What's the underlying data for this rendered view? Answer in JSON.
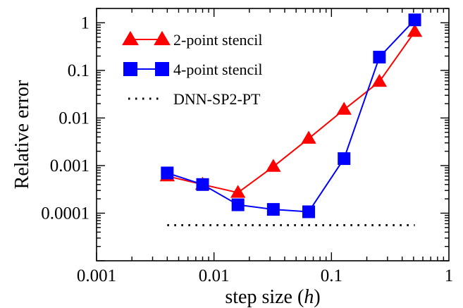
{
  "chart_data": {
    "type": "line",
    "xscale": "log",
    "yscale": "log",
    "xlim": [
      0.001,
      1
    ],
    "ylim": [
      1e-05,
      2
    ],
    "xticks": [
      {
        "value": 0.001,
        "label": "0.001"
      },
      {
        "value": 0.01,
        "label": "0.01"
      },
      {
        "value": 0.1,
        "label": "0.1"
      },
      {
        "value": 1,
        "label": "1"
      }
    ],
    "yticks": [
      {
        "value": 0.0001,
        "label": "0.0001"
      },
      {
        "value": 0.001,
        "label": "0.001"
      },
      {
        "value": 0.01,
        "label": "0.01"
      },
      {
        "value": 0.1,
        "label": "0.1"
      },
      {
        "value": 1,
        "label": "1"
      }
    ],
    "xlabel": "step size (",
    "xlabel_var": "h",
    "xlabel_end": ")",
    "ylabel": "Relative error",
    "grid": false,
    "legend_position": "top-left",
    "series": [
      {
        "name": "2-point stencil",
        "color": "#ff0000",
        "marker": "triangle",
        "x": [
          0.004,
          0.008,
          0.016,
          0.032,
          0.064,
          0.128,
          0.256,
          0.512
        ],
        "y": [
          0.0006,
          0.0004,
          0.00027,
          0.00095,
          0.0037,
          0.015,
          0.058,
          0.65
        ]
      },
      {
        "name": "4-point stencil",
        "color": "#0000ff",
        "marker": "square",
        "x": [
          0.004,
          0.008,
          0.016,
          0.032,
          0.064,
          0.128,
          0.256,
          0.512
        ],
        "y": [
          0.0007,
          0.0004,
          0.00015,
          0.00012,
          0.000107,
          0.0014,
          0.19,
          1.15
        ]
      },
      {
        "name": "DNN-SP2-PT",
        "color": "#000000",
        "marker": "none",
        "style": "dotted",
        "x": [
          0.004,
          0.512
        ],
        "y": [
          5.6e-05,
          5.6e-05
        ]
      }
    ]
  }
}
